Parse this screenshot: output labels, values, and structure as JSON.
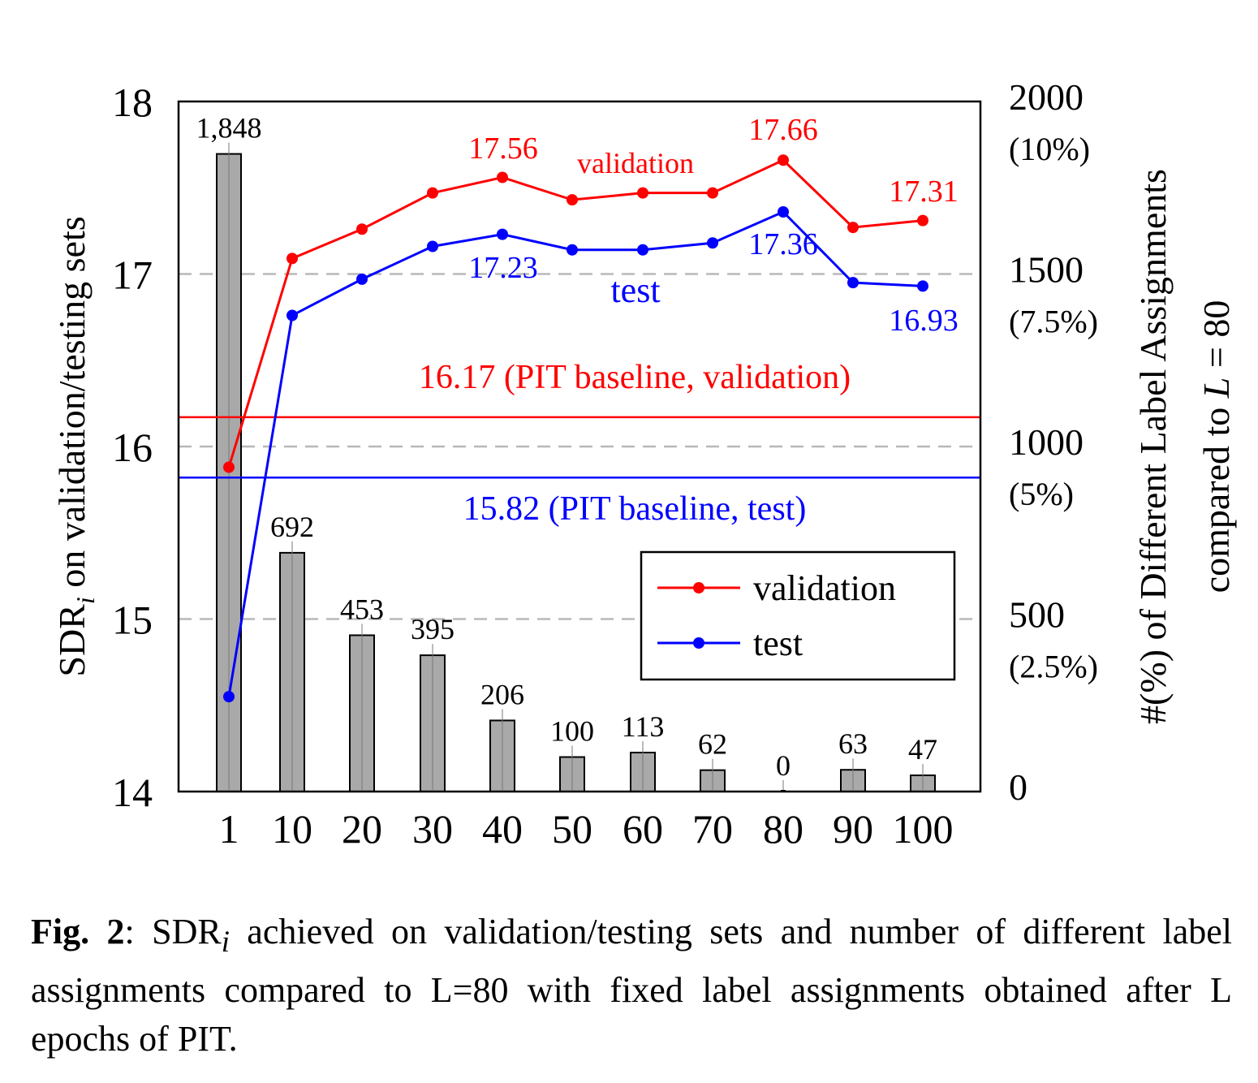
{
  "chart_data": {
    "type": "bar+line",
    "categories": [
      "1",
      "10",
      "20",
      "30",
      "40",
      "50",
      "60",
      "70",
      "80",
      "90",
      "100"
    ],
    "bars": {
      "name": "#(%) of Different Label Assignments compared to L = 80",
      "values": [
        1848,
        692,
        453,
        395,
        206,
        100,
        113,
        62,
        0,
        63,
        47
      ],
      "labels": [
        "1,848",
        "692",
        "453",
        "395",
        "206",
        "100",
        "113",
        "62",
        "0",
        "63",
        "47"
      ],
      "color": "#a9a9a9"
    },
    "series": [
      {
        "name": "validation",
        "color": "#ff0000",
        "values": [
          15.88,
          17.09,
          17.26,
          17.47,
          17.56,
          17.43,
          17.47,
          17.47,
          17.66,
          17.27,
          17.31
        ]
      },
      {
        "name": "test",
        "color": "#0000ff",
        "values": [
          14.55,
          16.76,
          16.97,
          17.16,
          17.23,
          17.14,
          17.14,
          17.18,
          17.36,
          16.95,
          16.93
        ]
      }
    ],
    "point_labels": [
      {
        "series": "validation",
        "text": "17.56",
        "color": "#ff0000"
      },
      {
        "series": "validation",
        "text": "17.66",
        "color": "#ff0000"
      },
      {
        "series": "validation",
        "text": "17.31",
        "color": "#ff0000"
      },
      {
        "series": "test",
        "text": "17.23",
        "color": "#0000ff"
      },
      {
        "series": "test",
        "text": "17.36",
        "color": "#0000ff"
      },
      {
        "series": "test",
        "text": "16.93",
        "color": "#0000ff"
      }
    ],
    "series_name_labels": [
      {
        "text": "validation",
        "color": "#ff0000"
      },
      {
        "text": "test",
        "color": "#0000ff"
      }
    ],
    "baselines": [
      {
        "value": 16.17,
        "color": "#ff0000",
        "label": "16.17 (PIT baseline, validation)"
      },
      {
        "value": 15.82,
        "color": "#0000ff",
        "label": "15.82 (PIT baseline, test)"
      }
    ],
    "y_left": {
      "label_main": "SDR",
      "label_sub": "i",
      "label_rest": " on validation/testing sets",
      "ylim": [
        14,
        18
      ],
      "ticks": [
        "14",
        "15",
        "16",
        "17",
        "18"
      ],
      "grid_values": [
        15,
        16,
        17
      ]
    },
    "y_right": {
      "label_line1": "#(%) of Different Label Assignments",
      "label_line2_pre": "compared to ",
      "label_line2_var": "L",
      "label_line2_post": " = 80",
      "ylim": [
        0,
        2000
      ],
      "ticks": [
        {
          "value": 0,
          "text": "0",
          "pct": ""
        },
        {
          "value": 500,
          "text": "500",
          "pct": "(2.5%)"
        },
        {
          "value": 1000,
          "text": "1000",
          "pct": "(5%)"
        },
        {
          "value": 1500,
          "text": "1500",
          "pct": "(7.5%)"
        },
        {
          "value": 2000,
          "text": "2000",
          "pct": "(10%)"
        }
      ]
    },
    "legend": {
      "position": "lower-right",
      "entries": [
        "validation",
        "test"
      ]
    }
  },
  "caption": {
    "fig_label": "Fig. 2",
    "sdr_main": "SDR",
    "sdr_sub": "i",
    "text": " achieved on validation/testing sets and number of different label assignments compared to L=80 with fixed label assignments obtained after L epochs of PIT."
  }
}
